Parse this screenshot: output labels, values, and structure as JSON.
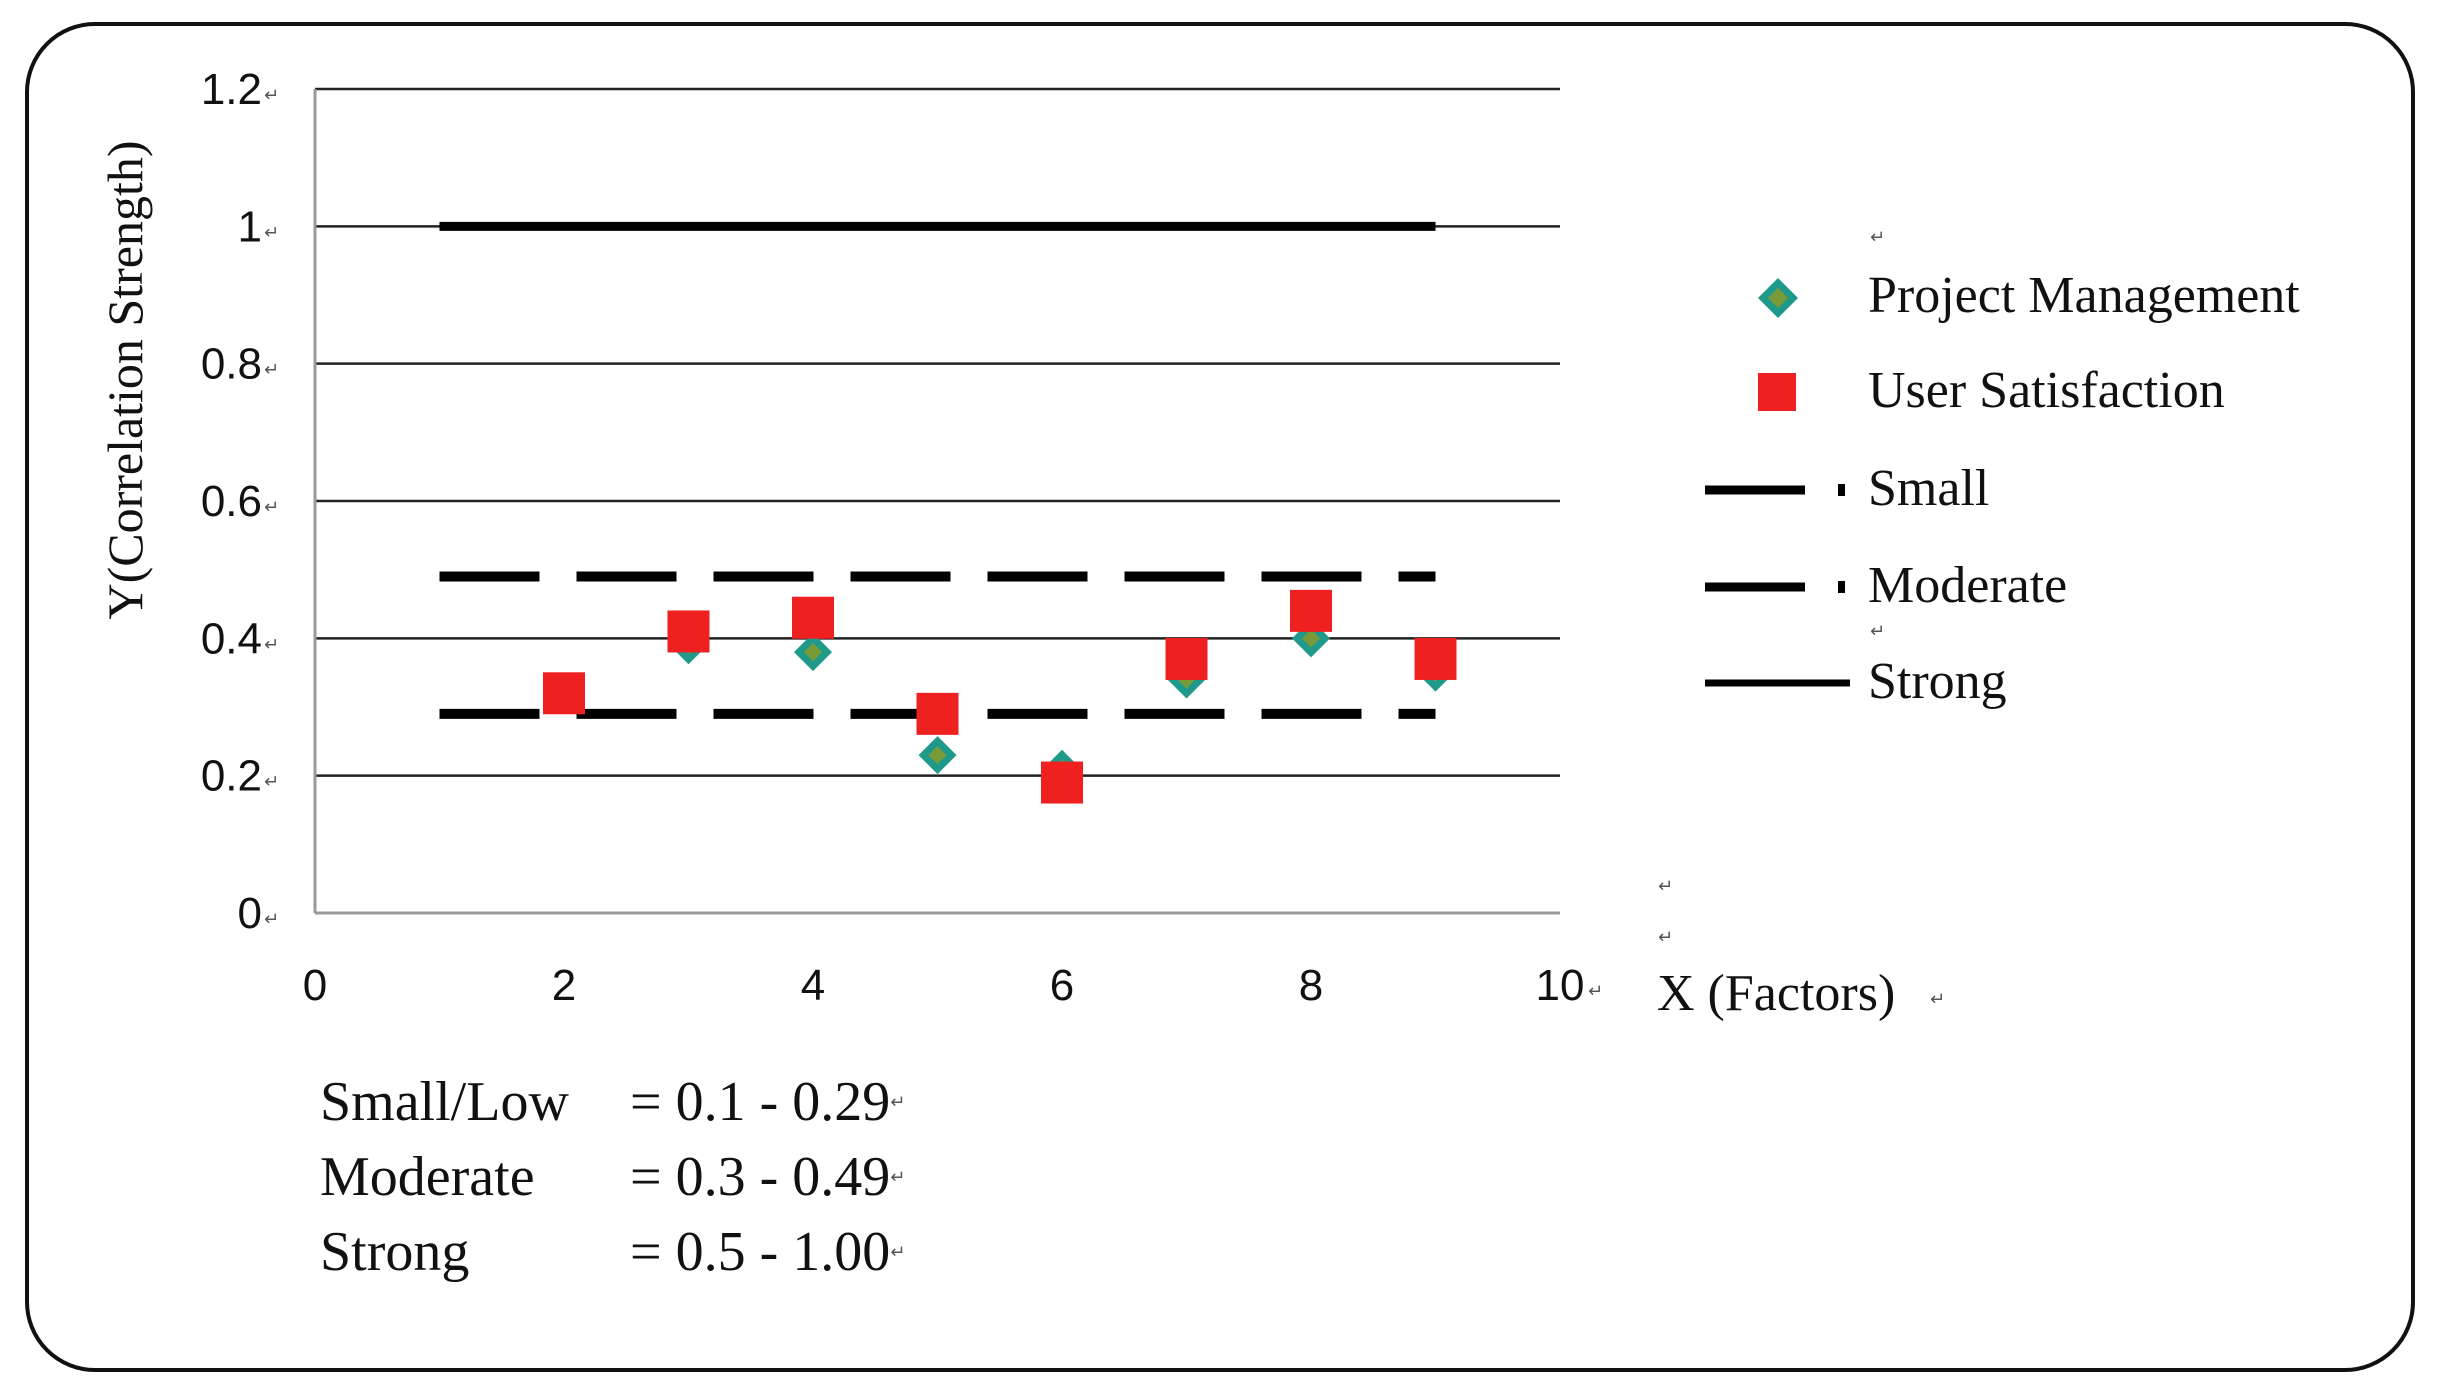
{
  "chart_data": {
    "type": "scatter",
    "title": "",
    "xlabel": "X (Factors)",
    "ylabel": "Y(Correlation Strength)",
    "xlim": [
      0,
      10
    ],
    "ylim": [
      0,
      1.2
    ],
    "x_ticks": [
      "0",
      "2",
      "4",
      "6",
      "8",
      "10"
    ],
    "y_ticks": [
      "0",
      "0.2",
      "0.4",
      "0.6",
      "0.8",
      "1",
      "1.2"
    ],
    "grid": true,
    "legend_position": "right",
    "series": [
      {
        "name": "Project Management",
        "marker": "diamond",
        "color": "#1f9a8a",
        "points": [
          {
            "x": 2,
            "y": 0.32
          },
          {
            "x": 3,
            "y": 0.39
          },
          {
            "x": 4,
            "y": 0.38
          },
          {
            "x": 5,
            "y": 0.23
          },
          {
            "x": 6,
            "y": 0.21
          },
          {
            "x": 7,
            "y": 0.34
          },
          {
            "x": 8,
            "y": 0.4
          },
          {
            "x": 9,
            "y": 0.35
          }
        ]
      },
      {
        "name": "User Satisfaction",
        "marker": "square",
        "color": "#ee2020",
        "points": [
          {
            "x": 2,
            "y": 0.32
          },
          {
            "x": 3,
            "y": 0.41
          },
          {
            "x": 4,
            "y": 0.43
          },
          {
            "x": 5,
            "y": 0.29
          },
          {
            "x": 6,
            "y": 0.19
          },
          {
            "x": 7,
            "y": 0.37
          },
          {
            "x": 8,
            "y": 0.44
          },
          {
            "x": 9,
            "y": 0.37
          }
        ]
      }
    ],
    "reference_lines": [
      {
        "name": "Small",
        "style": "dashed",
        "x_from": 1,
        "x_to": 9,
        "y": 0.29
      },
      {
        "name": "Moderate",
        "style": "dashed",
        "x_from": 1,
        "x_to": 9,
        "y": 0.49
      },
      {
        "name": "Strong",
        "style": "solid",
        "x_from": 1,
        "x_to": 9,
        "y": 1.0
      }
    ],
    "legend": [
      "Project Management",
      "User Satisfaction",
      "Small",
      "Moderate",
      "Strong"
    ]
  },
  "scale": [
    {
      "label": "Small/Low",
      "range": "= 0.1 - 0.29"
    },
    {
      "label": "Moderate",
      "range": "= 0.3 - 0.49"
    },
    {
      "label": "Strong",
      "range": "= 0.5 - 1.00"
    }
  ],
  "colors": {
    "diamond": "#1f9a8a",
    "diamond_inner": "#7a9a3a",
    "square": "#ee2020"
  },
  "return_mark": "↵"
}
